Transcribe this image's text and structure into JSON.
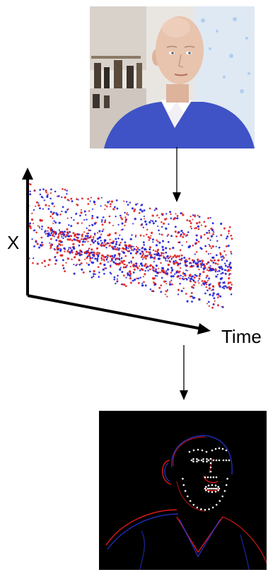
{
  "figure": {
    "photo": {
      "subject": "man-portrait",
      "colors": {
        "background": "#e9e6e2",
        "skin": "#e8c3ad",
        "sweater": "#3f53c6",
        "shirt": "#f2f0f4"
      }
    },
    "plot": {
      "labels": {
        "y_axis": "X",
        "time_axis": "Time"
      },
      "colors": {
        "positive": "#e02020",
        "negative": "#2020d8",
        "axis": "#000000"
      }
    },
    "event_frame": {
      "background": "#000000",
      "colors": {
        "edges_red": "#e01818",
        "edges_blue": "#2838e0",
        "landmarks": "#ffffff"
      }
    }
  }
}
